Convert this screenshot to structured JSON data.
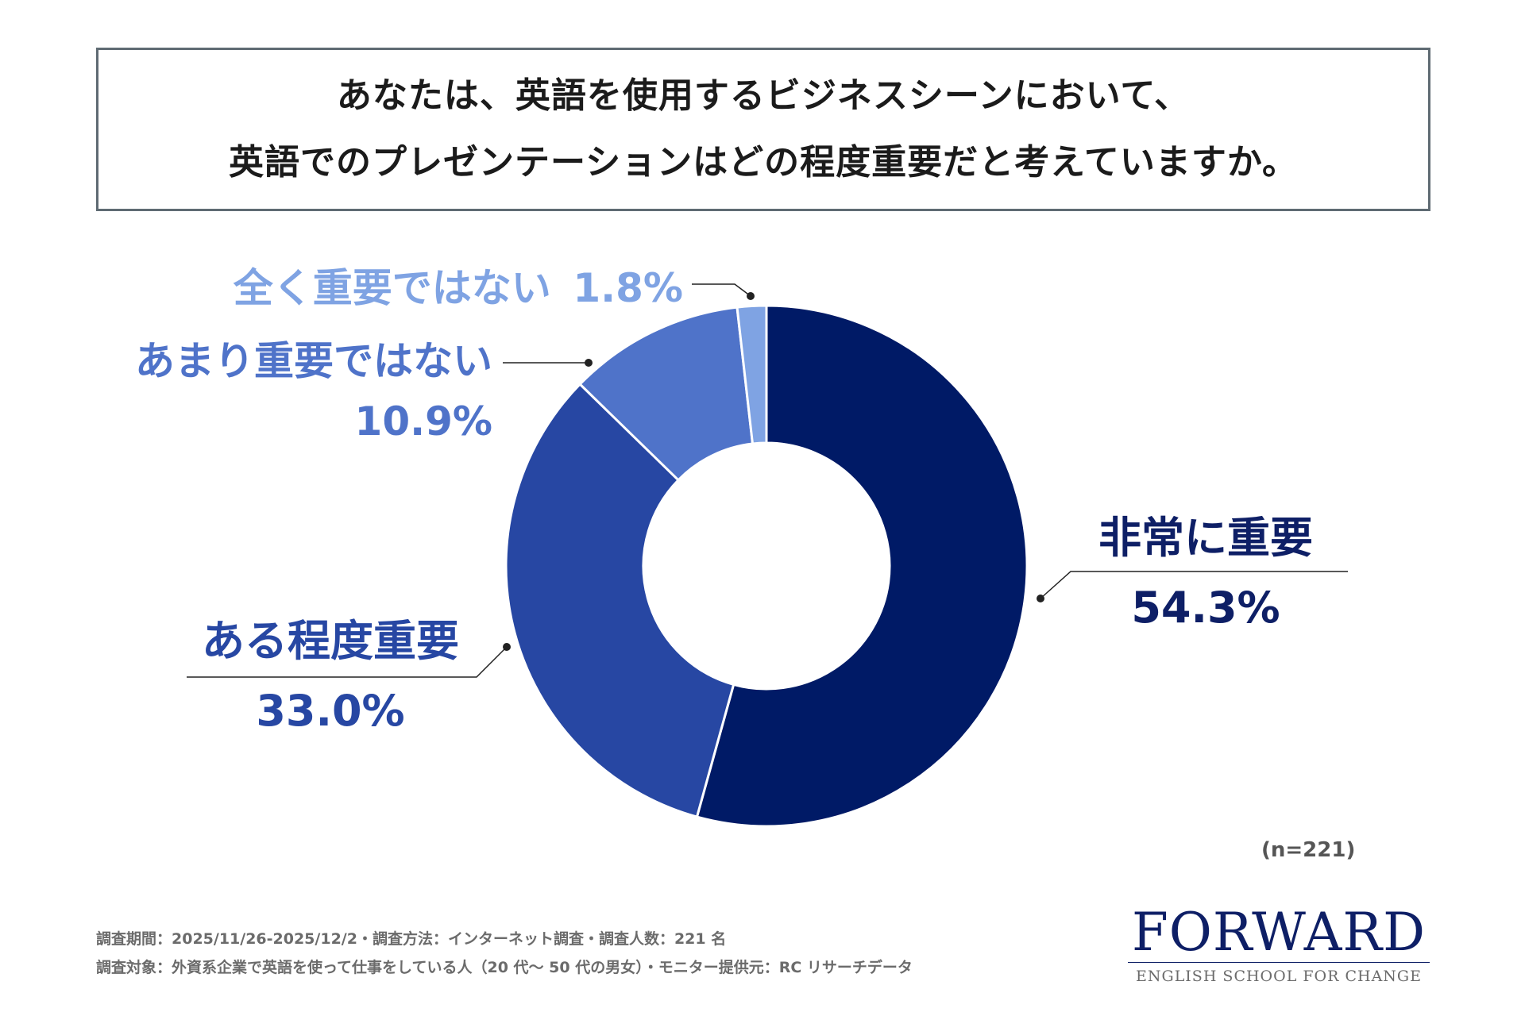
{
  "title": {
    "line1": "あなたは、英語を使用するビジネスシーンにおいて、",
    "line2": "英語でのプレゼンテーションはどの程度重要だと考えていますか。"
  },
  "chart_data": {
    "type": "pie",
    "donut": true,
    "start_angle_deg": 0,
    "direction": "clockwise",
    "sample_note": "(n=221)",
    "slices": [
      {
        "label": "非常に重要",
        "value": 54.3,
        "display": "54.3%",
        "color": "#001a66"
      },
      {
        "label": "ある程度重要",
        "value": 33.0,
        "display": "33.0%",
        "color": "#2747a3"
      },
      {
        "label": "あまり重要ではない",
        "value": 10.9,
        "display": "10.9%",
        "color": "#4f73c9"
      },
      {
        "label": "全く重要ではない",
        "value": 1.8,
        "display": "1.8%",
        "color": "#7fa3e3"
      }
    ]
  },
  "footer": {
    "line1": "調査期間：2025/11/26-2025/12/2・調査方法：インターネット調査・調査人数：221 名",
    "line2": "調査対象：外資系企業で英語を使って仕事をしている人（20 代～ 50 代の男女）・モニター提供元：RC リサーチデータ"
  },
  "logo": {
    "name": "FORWARD",
    "tagline": "ENGLISH SCHOOL FOR CHANGE"
  }
}
